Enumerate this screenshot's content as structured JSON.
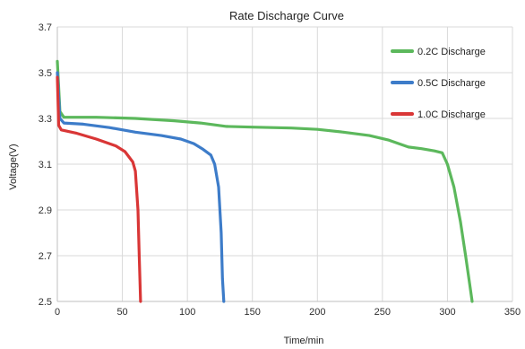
{
  "chart_data": {
    "type": "line",
    "title": "Rate Discharge Curve",
    "xlabel": "Time/min",
    "ylabel": "Voltage(V)",
    "xlim": [
      0,
      350
    ],
    "ylim": [
      2.5,
      3.7
    ],
    "x_ticks": [
      "0",
      "50",
      "100",
      "150",
      "200",
      "250",
      "300",
      "350"
    ],
    "y_ticks": [
      "2.5",
      "2.7",
      "2.9",
      "3.1",
      "3.3",
      "3.5",
      "3.7"
    ],
    "grid": true,
    "legend_position": "top-right",
    "series": [
      {
        "name": "0.2C Discharge",
        "color": "#5cb85c",
        "points": [
          [
            0,
            3.55
          ],
          [
            2,
            3.33
          ],
          [
            5,
            3.305
          ],
          [
            30,
            3.305
          ],
          [
            60,
            3.3
          ],
          [
            90,
            3.29
          ],
          [
            110,
            3.28
          ],
          [
            130,
            3.265
          ],
          [
            150,
            3.262
          ],
          [
            180,
            3.258
          ],
          [
            200,
            3.252
          ],
          [
            220,
            3.24
          ],
          [
            240,
            3.225
          ],
          [
            255,
            3.205
          ],
          [
            270,
            3.175
          ],
          [
            280,
            3.168
          ],
          [
            290,
            3.158
          ],
          [
            296,
            3.15
          ],
          [
            300,
            3.1
          ],
          [
            305,
            3.0
          ],
          [
            310,
            2.85
          ],
          [
            314,
            2.7
          ],
          [
            317,
            2.58
          ],
          [
            319,
            2.5
          ]
        ]
      },
      {
        "name": "0.5C Discharge",
        "color": "#3d7cc9",
        "points": [
          [
            0,
            3.5
          ],
          [
            2,
            3.3
          ],
          [
            5,
            3.28
          ],
          [
            20,
            3.275
          ],
          [
            40,
            3.26
          ],
          [
            60,
            3.24
          ],
          [
            80,
            3.225
          ],
          [
            95,
            3.21
          ],
          [
            105,
            3.19
          ],
          [
            112,
            3.165
          ],
          [
            118,
            3.14
          ],
          [
            121,
            3.1
          ],
          [
            124,
            3.0
          ],
          [
            126,
            2.8
          ],
          [
            127,
            2.6
          ],
          [
            128,
            2.5
          ]
        ]
      },
      {
        "name": "1.0C Discharge",
        "color": "#d93636",
        "points": [
          [
            0,
            3.48
          ],
          [
            1,
            3.27
          ],
          [
            3,
            3.25
          ],
          [
            15,
            3.235
          ],
          [
            30,
            3.21
          ],
          [
            45,
            3.18
          ],
          [
            52,
            3.155
          ],
          [
            58,
            3.11
          ],
          [
            60,
            3.07
          ],
          [
            62,
            2.9
          ],
          [
            63,
            2.7
          ],
          [
            64,
            2.5
          ]
        ]
      }
    ]
  }
}
